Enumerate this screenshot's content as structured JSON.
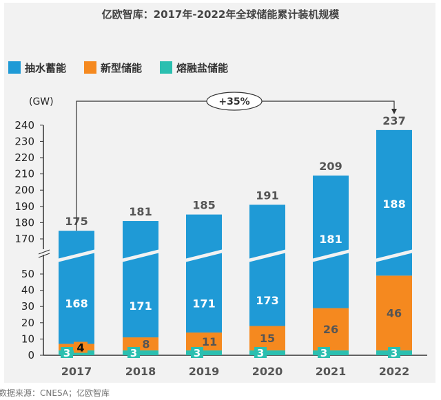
{
  "chart_data": {
    "type": "bar",
    "stacked": true,
    "title": "亿欧智库：2017年-2022年全球储能累计装机规模",
    "ylabel": "(GW)",
    "categories": [
      "2017",
      "2018",
      "2019",
      "2020",
      "2021",
      "2022"
    ],
    "series": [
      {
        "name": "熔融盐储能",
        "color": "#2bbfb0",
        "values": [
          3,
          3,
          3,
          3,
          3,
          3
        ]
      },
      {
        "name": "新型储能",
        "color": "#f5891f",
        "values": [
          4,
          8,
          11,
          15,
          26,
          46
        ]
      },
      {
        "name": "抽水蓄能",
        "color": "#1f9ad6",
        "values": [
          168,
          171,
          171,
          173,
          181,
          188
        ]
      }
    ],
    "totals": [
      175,
      181,
      185,
      191,
      209,
      237
    ],
    "legend_order": [
      "抽水蓄能",
      "新型储能",
      "熔融盐储能"
    ],
    "legend_placement": "top-left",
    "y_ticks_lower": [
      "0",
      "10",
      "20",
      "30",
      "40",
      "50"
    ],
    "y_ticks_upper": [
      "170",
      "180",
      "190",
      "200",
      "210",
      "220",
      "230",
      "240"
    ],
    "axis_break": true,
    "ylim_lower": [
      0,
      50
    ],
    "ylim_upper": [
      170,
      240
    ],
    "annotation": "+35%",
    "grid": false,
    "source": "数据来源：CNESA；亿欧智库"
  }
}
